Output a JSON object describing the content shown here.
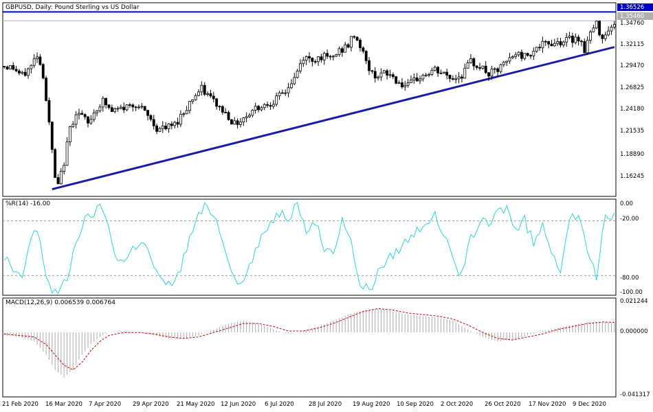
{
  "chart_data": [
    {
      "type": "candlestick",
      "title": "GBPUSD, Daily:  Pound Sterling vs US Dollar",
      "price_ticks": [
        "1.36526",
        "1.34760",
        "1.32115",
        "1.29470",
        "1.26825",
        "1.24180",
        "1.21535",
        "1.18890",
        "1.16245"
      ],
      "current_price": "1.35460",
      "horizontal_level": "1.36526",
      "ylim": [
        1.145,
        1.373
      ],
      "trendline": {
        "from": {
          "date": "16 Mar 2020",
          "value": 1.152
        },
        "to": {
          "date": "21 Dec 2020",
          "value": 1.323
        }
      },
      "x_labels": [
        "21 Feb 2020",
        "16 Mar 2020",
        "7 Apr 2020",
        "29 Apr 2020",
        "21 May 2020",
        "12 Jun 2020",
        "6 Jul 2020",
        "28 Jul 2020",
        "19 Aug 2020",
        "10 Sep 2020",
        "2 Oct 2020",
        "26 Oct 2020",
        "17 Nov 2020",
        "9 Dec 2020"
      ],
      "close_path": [
        [
          0,
          1.3
        ],
        [
          3,
          1.298
        ],
        [
          6,
          1.288
        ],
        [
          9,
          1.3
        ],
        [
          11,
          1.315
        ],
        [
          13,
          1.29
        ],
        [
          15,
          1.23
        ],
        [
          17,
          1.165
        ],
        [
          18,
          1.155
        ],
        [
          20,
          1.185
        ],
        [
          22,
          1.225
        ],
        [
          24,
          1.245
        ],
        [
          26,
          1.24
        ],
        [
          28,
          1.23
        ],
        [
          30,
          1.245
        ],
        [
          33,
          1.258
        ],
        [
          36,
          1.245
        ],
        [
          40,
          1.25
        ],
        [
          44,
          1.255
        ],
        [
          48,
          1.24
        ],
        [
          51,
          1.225
        ],
        [
          54,
          1.225
        ],
        [
          57,
          1.23
        ],
        [
          60,
          1.245
        ],
        [
          63,
          1.262
        ],
        [
          66,
          1.272
        ],
        [
          69,
          1.262
        ],
        [
          72,
          1.25
        ],
        [
          75,
          1.24
        ],
        [
          77,
          1.23
        ],
        [
          80,
          1.238
        ],
        [
          84,
          1.25
        ],
        [
          88,
          1.255
        ],
        [
          91,
          1.26
        ],
        [
          94,
          1.27
        ],
        [
          97,
          1.285
        ],
        [
          100,
          1.31
        ],
        [
          103,
          1.308
        ],
        [
          106,
          1.312
        ],
        [
          109,
          1.308
        ],
        [
          112,
          1.318
        ],
        [
          115,
          1.325
        ],
        [
          117,
          1.338
        ],
        [
          119,
          1.325
        ],
        [
          121,
          1.305
        ],
        [
          123,
          1.29
        ],
        [
          126,
          1.29
        ],
        [
          129,
          1.29
        ],
        [
          132,
          1.28
        ],
        [
          135,
          1.275
        ],
        [
          138,
          1.285
        ],
        [
          141,
          1.29
        ],
        [
          144,
          1.295
        ],
        [
          147,
          1.29
        ],
        [
          150,
          1.285
        ],
        [
          153,
          1.29
        ],
        [
          156,
          1.305
        ],
        [
          159,
          1.3
        ],
        [
          162,
          1.29
        ],
        [
          165,
          1.295
        ],
        [
          168,
          1.305
        ],
        [
          171,
          1.315
        ],
        [
          174,
          1.312
        ],
        [
          177,
          1.32
        ],
        [
          180,
          1.325
        ],
        [
          183,
          1.328
        ],
        [
          186,
          1.33
        ],
        [
          189,
          1.332
        ],
        [
          192,
          1.335
        ],
        [
          194,
          1.32
        ],
        [
          196,
          1.34
        ],
        [
          198,
          1.35
        ],
        [
          200,
          1.335
        ],
        [
          202,
          1.346
        ],
        [
          204,
          1.348
        ]
      ]
    },
    {
      "type": "line",
      "title": "%R(14) -16.00",
      "ticks": [
        "0.00",
        "-20.00",
        "-80.00",
        "-100.00"
      ],
      "levels": [
        -20,
        -80
      ],
      "ylim": [
        -100,
        0
      ],
      "path": [
        [
          0,
          -60
        ],
        [
          3,
          -75
        ],
        [
          6,
          -85
        ],
        [
          8,
          -50
        ],
        [
          10,
          -30
        ],
        [
          12,
          -40
        ],
        [
          14,
          -80
        ],
        [
          16,
          -95
        ],
        [
          18,
          -98
        ],
        [
          21,
          -85
        ],
        [
          24,
          -40
        ],
        [
          27,
          -20
        ],
        [
          30,
          -10
        ],
        [
          33,
          -5
        ],
        [
          35,
          -30
        ],
        [
          37,
          -55
        ],
        [
          40,
          -65
        ],
        [
          43,
          -50
        ],
        [
          46,
          -40
        ],
        [
          49,
          -60
        ],
        [
          52,
          -85
        ],
        [
          55,
          -90
        ],
        [
          58,
          -80
        ],
        [
          61,
          -50
        ],
        [
          64,
          -20
        ],
        [
          67,
          -5
        ],
        [
          70,
          -10
        ],
        [
          73,
          -40
        ],
        [
          76,
          -70
        ],
        [
          78,
          -95
        ],
        [
          80,
          -85
        ],
        [
          83,
          -60
        ],
        [
          86,
          -40
        ],
        [
          89,
          -20
        ],
        [
          92,
          -10
        ],
        [
          95,
          -15
        ],
        [
          98,
          -5
        ],
        [
          101,
          -30
        ],
        [
          104,
          -20
        ],
        [
          107,
          -50
        ],
        [
          110,
          -60
        ],
        [
          113,
          -15
        ],
        [
          116,
          -40
        ],
        [
          118,
          -80
        ],
        [
          120,
          -95
        ],
        [
          123,
          -90
        ],
        [
          126,
          -70
        ],
        [
          129,
          -60
        ],
        [
          132,
          -50
        ],
        [
          135,
          -40
        ],
        [
          138,
          -30
        ],
        [
          141,
          -20
        ],
        [
          144,
          -15
        ],
        [
          147,
          -35
        ],
        [
          150,
          -65
        ],
        [
          153,
          -80
        ],
        [
          156,
          -40
        ],
        [
          159,
          -20
        ],
        [
          162,
          -25
        ],
        [
          165,
          -10
        ],
        [
          168,
          -5
        ],
        [
          171,
          -30
        ],
        [
          174,
          -20
        ],
        [
          177,
          -45
        ],
        [
          180,
          -25
        ],
        [
          183,
          -50
        ],
        [
          186,
          -75
        ],
        [
          189,
          -15
        ],
        [
          192,
          -20
        ],
        [
          195,
          -50
        ],
        [
          198,
          -80
        ],
        [
          201,
          -10
        ],
        [
          204,
          -16
        ]
      ]
    },
    {
      "type": "histogram",
      "title": "MACD(12,26,9) 0.006539 0.006764",
      "ticks": [
        "0.021244",
        "0.000000",
        "-0.041317"
      ],
      "ylim": [
        -0.041317,
        0.021244
      ],
      "macd_path": [
        [
          0,
          -0.002
        ],
        [
          5,
          -0.003
        ],
        [
          10,
          -0.006
        ],
        [
          14,
          -0.015
        ],
        [
          17,
          -0.025
        ],
        [
          20,
          -0.03
        ],
        [
          23,
          -0.025
        ],
        [
          26,
          -0.015
        ],
        [
          29,
          -0.008
        ],
        [
          32,
          -0.003
        ],
        [
          35,
          0.0
        ],
        [
          40,
          0.001
        ],
        [
          45,
          0.0
        ],
        [
          50,
          -0.002
        ],
        [
          55,
          -0.004
        ],
        [
          60,
          -0.004
        ],
        [
          65,
          -0.002
        ],
        [
          70,
          0.002
        ],
        [
          75,
          0.006
        ],
        [
          80,
          0.008
        ],
        [
          85,
          0.006
        ],
        [
          90,
          0.002
        ],
        [
          95,
          -0.001
        ],
        [
          100,
          0.001
        ],
        [
          105,
          0.004
        ],
        [
          110,
          0.008
        ],
        [
          115,
          0.012
        ],
        [
          120,
          0.015
        ],
        [
          125,
          0.016
        ],
        [
          130,
          0.014
        ],
        [
          135,
          0.012
        ],
        [
          140,
          0.011
        ],
        [
          145,
          0.01
        ],
        [
          150,
          0.008
        ],
        [
          155,
          0.002
        ],
        [
          160,
          -0.003
        ],
        [
          165,
          -0.006
        ],
        [
          170,
          -0.005
        ],
        [
          175,
          -0.002
        ],
        [
          180,
          0.001
        ],
        [
          185,
          0.003
        ],
        [
          190,
          0.005
        ],
        [
          195,
          0.007
        ],
        [
          200,
          0.007
        ],
        [
          204,
          0.0065
        ]
      ],
      "signal_path": [
        [
          0,
          -0.001
        ],
        [
          5,
          -0.002
        ],
        [
          10,
          -0.003
        ],
        [
          14,
          -0.008
        ],
        [
          17,
          -0.015
        ],
        [
          20,
          -0.022
        ],
        [
          23,
          -0.025
        ],
        [
          26,
          -0.02
        ],
        [
          29,
          -0.012
        ],
        [
          32,
          -0.006
        ],
        [
          35,
          -0.002
        ],
        [
          40,
          0.0
        ],
        [
          45,
          0.0
        ],
        [
          50,
          -0.001
        ],
        [
          55,
          -0.003
        ],
        [
          60,
          -0.004
        ],
        [
          65,
          -0.003
        ],
        [
          70,
          0.0
        ],
        [
          75,
          0.003
        ],
        [
          80,
          0.006
        ],
        [
          85,
          0.006
        ],
        [
          90,
          0.004
        ],
        [
          95,
          0.001
        ],
        [
          100,
          0.001
        ],
        [
          105,
          0.003
        ],
        [
          110,
          0.006
        ],
        [
          115,
          0.01
        ],
        [
          120,
          0.014
        ],
        [
          125,
          0.016
        ],
        [
          130,
          0.015
        ],
        [
          135,
          0.013
        ],
        [
          140,
          0.012
        ],
        [
          145,
          0.011
        ],
        [
          150,
          0.009
        ],
        [
          155,
          0.005
        ],
        [
          160,
          0.0
        ],
        [
          165,
          -0.004
        ],
        [
          170,
          -0.005
        ],
        [
          175,
          -0.003
        ],
        [
          180,
          -0.001
        ],
        [
          185,
          0.002
        ],
        [
          190,
          0.004
        ],
        [
          195,
          0.006
        ],
        [
          200,
          0.007
        ],
        [
          204,
          0.0068
        ]
      ]
    }
  ]
}
